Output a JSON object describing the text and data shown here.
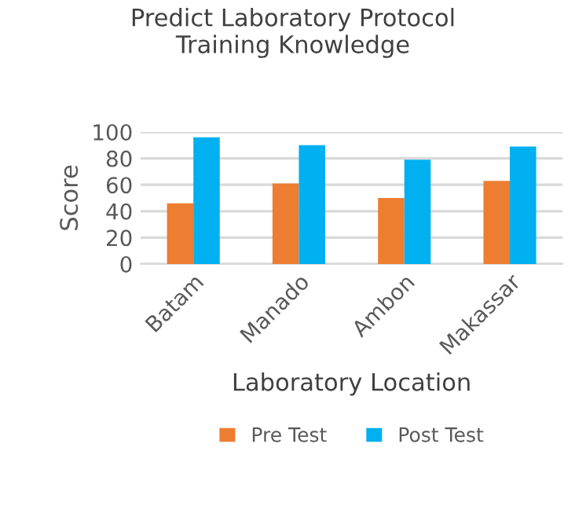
{
  "chart_data": {
    "type": "bar",
    "title": "Predict Laboratory Protocol\nTraining Knowledge",
    "xlabel": "Laboratory Location",
    "ylabel": "Score",
    "categories": [
      "Batam",
      "Manado",
      "Ambon",
      "Makassar"
    ],
    "series": [
      {
        "name": "Pre Test",
        "color": "#ed7d31",
        "values": [
          46,
          61,
          50,
          63
        ]
      },
      {
        "name": "Post Test",
        "color": "#00b0f0",
        "values": [
          96,
          90,
          79,
          89
        ]
      }
    ],
    "ylim": [
      0,
      100
    ],
    "yticks": [
      0,
      20,
      40,
      60,
      80,
      100
    ],
    "grid": "y",
    "legend": "bottom"
  }
}
